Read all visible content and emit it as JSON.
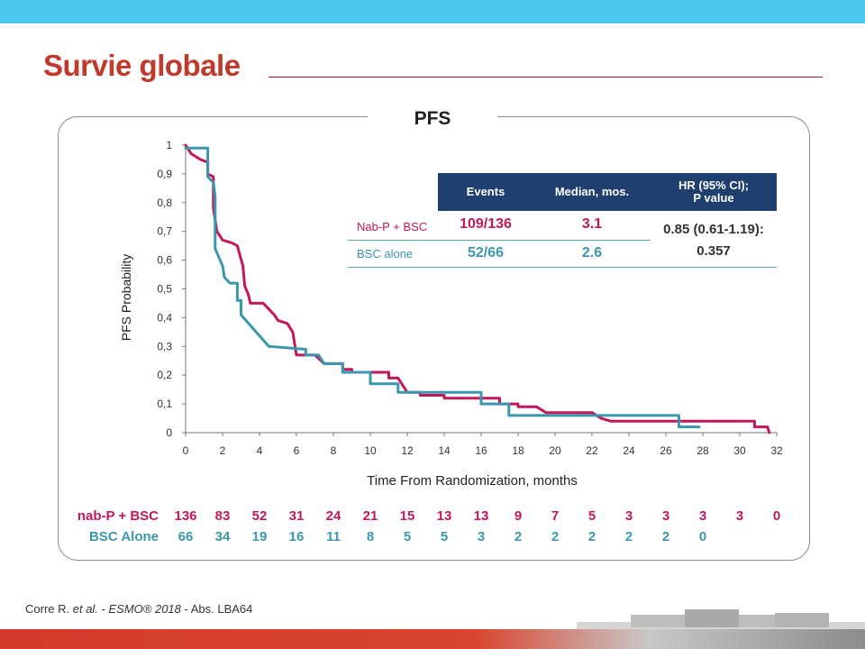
{
  "title": "Survie globale",
  "panel_label": "PFS",
  "colors": {
    "nab": "#c2185b",
    "bsc": "#3a97ad",
    "title": "#c0392b",
    "header": "#1f3f6e"
  },
  "table": {
    "headers": [
      "Events",
      "Median, mos.",
      "HR (95% CI);\nP value"
    ],
    "rows": [
      {
        "label": "Nab-P + BSC",
        "events": "109/136",
        "median": "3.1"
      },
      {
        "label": "BSC alone",
        "events": "52/66",
        "median": "2.6"
      }
    ],
    "hr": "0.85 (0.61-1.19):",
    "p": "0.357"
  },
  "risk": {
    "nab_label": "nab-P + BSC",
    "bsc_label": "BSC Alone",
    "nab": [
      "136",
      "83",
      "52",
      "31",
      "24",
      "21",
      "15",
      "13",
      "13",
      "9",
      "7",
      "5",
      "3",
      "3",
      "3",
      "3",
      "0"
    ],
    "bsc": [
      "66",
      "34",
      "19",
      "16",
      "11",
      "8",
      "5",
      "5",
      "3",
      "2",
      "2",
      "2",
      "2",
      "2",
      "0"
    ]
  },
  "footnote": {
    "author": "Corre R. ",
    "etal": "et al.",
    "sep": " - ",
    "journal": "ESMO® 2018",
    "abs": " - Abs. LBA64"
  },
  "chart_data": {
    "type": "line",
    "title": "",
    "xlabel": "Time From Randomization, months",
    "ylabel": "PFS Probability",
    "xlim": [
      0,
      32
    ],
    "ylim": [
      0,
      1
    ],
    "xticks": [
      "0",
      "2",
      "4",
      "6",
      "8",
      "10",
      "12",
      "14",
      "16",
      "18",
      "20",
      "22",
      "24",
      "26",
      "28",
      "30",
      "32"
    ],
    "yticks": [
      "0",
      "0,1",
      "0,2",
      "0,3",
      "0,4",
      "0,5",
      "0,6",
      "0,7",
      "0,8",
      "0,9",
      "1"
    ],
    "series": [
      {
        "name": "Nab-P + BSC",
        "color": "#c2185b",
        "points": [
          [
            0,
            1
          ],
          [
            0.3,
            0.97
          ],
          [
            0.8,
            0.95
          ],
          [
            1.2,
            0.94
          ],
          [
            1.2,
            0.9
          ],
          [
            1.5,
            0.89
          ],
          [
            1.5,
            0.78
          ],
          [
            1.7,
            0.7
          ],
          [
            2,
            0.67
          ],
          [
            2.5,
            0.66
          ],
          [
            2.8,
            0.65
          ],
          [
            3.1,
            0.58
          ],
          [
            3.2,
            0.51
          ],
          [
            3.4,
            0.48
          ],
          [
            3.5,
            0.45
          ],
          [
            4.2,
            0.45
          ],
          [
            4.8,
            0.41
          ],
          [
            5,
            0.39
          ],
          [
            5.5,
            0.38
          ],
          [
            5.8,
            0.35
          ],
          [
            6,
            0.27
          ],
          [
            7,
            0.27
          ],
          [
            7.5,
            0.24
          ],
          [
            8.5,
            0.24
          ],
          [
            8.5,
            0.22
          ],
          [
            9,
            0.22
          ],
          [
            9,
            0.21
          ],
          [
            11,
            0.21
          ],
          [
            11,
            0.19
          ],
          [
            11.5,
            0.19
          ],
          [
            12,
            0.14
          ],
          [
            12.7,
            0.14
          ],
          [
            12.7,
            0.13
          ],
          [
            14,
            0.13
          ],
          [
            14,
            0.12
          ],
          [
            16,
            0.12
          ],
          [
            17,
            0.12
          ],
          [
            17,
            0.1
          ],
          [
            18,
            0.1
          ],
          [
            18,
            0.09
          ],
          [
            19,
            0.09
          ],
          [
            19.5,
            0.07
          ],
          [
            22,
            0.07
          ],
          [
            22.5,
            0.05
          ],
          [
            23,
            0.04
          ],
          [
            26,
            0.04
          ],
          [
            28,
            0.04
          ],
          [
            30.8,
            0.04
          ],
          [
            30.8,
            0.02
          ],
          [
            31.5,
            0.02
          ],
          [
            31.6,
            0
          ]
        ]
      },
      {
        "name": "BSC alone",
        "color": "#3a97ad",
        "points": [
          [
            0,
            0.99
          ],
          [
            1.2,
            0.99
          ],
          [
            1.2,
            0.89
          ],
          [
            1.5,
            0.87
          ],
          [
            1.6,
            0.82
          ],
          [
            1.6,
            0.64
          ],
          [
            2,
            0.58
          ],
          [
            2.1,
            0.54
          ],
          [
            2.4,
            0.52
          ],
          [
            2.8,
            0.52
          ],
          [
            2.8,
            0.46
          ],
          [
            3,
            0.46
          ],
          [
            3,
            0.41
          ],
          [
            4.5,
            0.3
          ],
          [
            6.5,
            0.29
          ],
          [
            6.5,
            0.27
          ],
          [
            7.2,
            0.27
          ],
          [
            7.5,
            0.24
          ],
          [
            8.5,
            0.24
          ],
          [
            8.5,
            0.21
          ],
          [
            10,
            0.21
          ],
          [
            10,
            0.17
          ],
          [
            11.5,
            0.17
          ],
          [
            11.5,
            0.14
          ],
          [
            16,
            0.14
          ],
          [
            16,
            0.1
          ],
          [
            17.5,
            0.1
          ],
          [
            17.5,
            0.06
          ],
          [
            26.7,
            0.06
          ],
          [
            26.7,
            0.02
          ],
          [
            27.8,
            0.02
          ]
        ]
      }
    ]
  }
}
